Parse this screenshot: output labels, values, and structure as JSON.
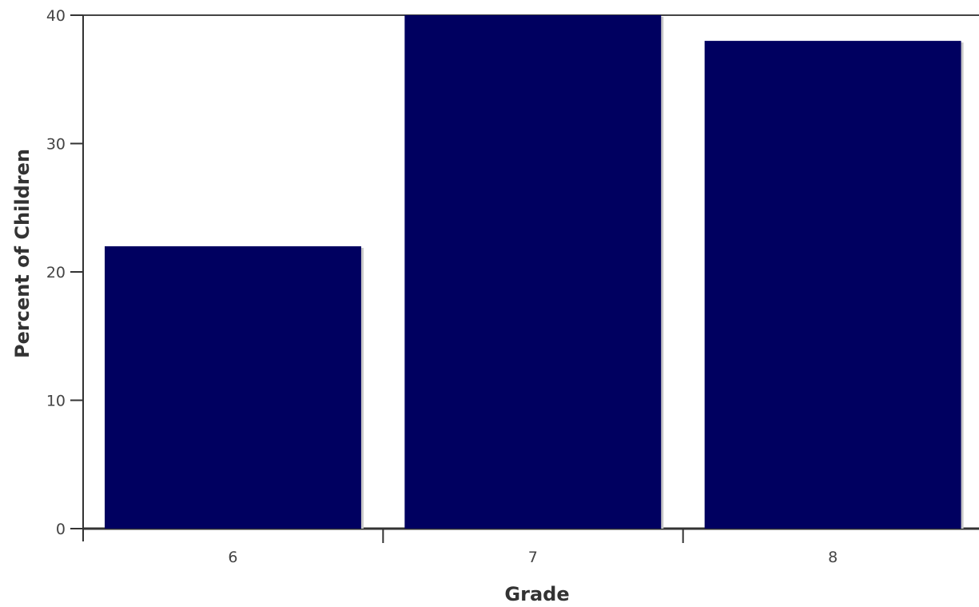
{
  "chart_data": {
    "type": "bar",
    "title": "",
    "xlabel": "Grade",
    "ylabel": "Percent of Children",
    "categories": [
      "6",
      "7",
      "8"
    ],
    "values": [
      22,
      40,
      38
    ],
    "ylim": [
      0,
      40
    ],
    "yticks": [
      "0",
      "10",
      "20",
      "30",
      "40"
    ],
    "bar_color": "#000060",
    "grid": false,
    "legend": "none"
  }
}
